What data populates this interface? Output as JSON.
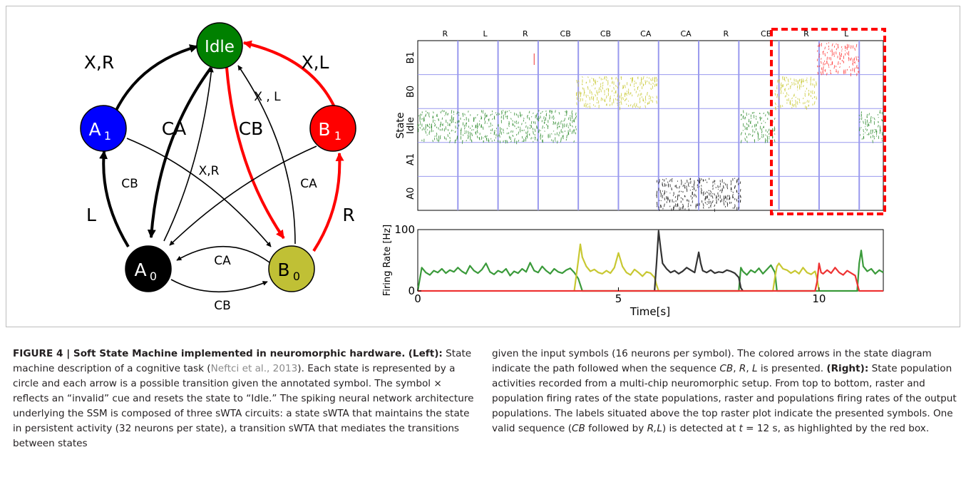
{
  "diagram": {
    "states": {
      "idle": "Idle",
      "a1_base": "A",
      "a1_sub": "1",
      "b1_base": "B",
      "b1_sub": "1",
      "a0_base": "A",
      "a0_sub": "0",
      "b0_base": "B",
      "b0_sub": "0"
    },
    "labels": {
      "xr_top": "X,R",
      "xl_top": "X,L",
      "ca_left": "CA",
      "cb_mid": "CB",
      "xl_inner": "X , L",
      "xr_inner": "X,R",
      "cb_left": "CB",
      "ca_right": "CA",
      "l_left": "L",
      "r_right": "R",
      "ca_bottom": "CA",
      "cb_bottom": "CB"
    },
    "colors": {
      "idle": "#008000",
      "a1": "#0000ff",
      "b1": "#ff0000",
      "a0": "#000000",
      "b0": "#c0c035",
      "path": "#ff0000"
    }
  },
  "chart_data": [
    {
      "type": "raster",
      "ylabel": "State",
      "rows": [
        "B1",
        "B0",
        "Idle",
        "A1",
        "A0"
      ],
      "symbols": [
        {
          "label": "R",
          "t": 1.0
        },
        {
          "label": "L",
          "t": 2.0
        },
        {
          "label": "R",
          "t": 3.0
        },
        {
          "label": "CB",
          "t": 4.0
        },
        {
          "label": "CB",
          "t": 5.0
        },
        {
          "label": "CA",
          "t": 6.0
        },
        {
          "label": "CA",
          "t": 7.0
        },
        {
          "label": "R",
          "t": 8.0
        },
        {
          "label": "CB",
          "t": 9.0
        },
        {
          "label": "R",
          "t": 10.0
        },
        {
          "label": "L",
          "t": 11.0
        }
      ],
      "activity": [
        {
          "state": "Idle",
          "start": 0.0,
          "end": 3.95,
          "color": "#2e8b2e"
        },
        {
          "state": "B0",
          "start": 3.95,
          "end": 5.95,
          "color": "#c8c832"
        },
        {
          "state": "A0",
          "start": 5.95,
          "end": 8.05,
          "color": "#111111"
        },
        {
          "state": "Idle",
          "start": 8.05,
          "end": 8.9,
          "color": "#2e8b2e"
        },
        {
          "state": "B0",
          "start": 8.9,
          "end": 9.95,
          "color": "#c8c832"
        },
        {
          "state": "B1",
          "start": 9.95,
          "end": 11.0,
          "color": "#ff3030"
        },
        {
          "state": "Idle",
          "start": 11.0,
          "end": 11.6,
          "color": "#2e8b2e"
        }
      ],
      "highlight": {
        "start": 8.9,
        "end": 11.6,
        "color": "#ff0000"
      },
      "xlim": [
        0,
        11.6
      ]
    },
    {
      "type": "line",
      "xlabel": "Time[s]",
      "ylabel": "Firing Rate [Hz]",
      "xlim": [
        0,
        11.6
      ],
      "ylim": [
        0,
        100
      ],
      "xticks": [
        0,
        5,
        10
      ],
      "yticks": [
        0,
        100
      ],
      "series": [
        {
          "color": "#3a9a3a",
          "x": [
            0,
            0.1,
            0.2,
            0.3,
            0.4,
            0.5,
            0.6,
            0.7,
            0.8,
            0.9,
            1.0,
            1.1,
            1.2,
            1.3,
            1.4,
            1.5,
            1.6,
            1.7,
            1.8,
            1.9,
            2.0,
            2.1,
            2.2,
            2.3,
            2.4,
            2.5,
            2.6,
            2.7,
            2.8,
            2.9,
            3.0,
            3.1,
            3.2,
            3.3,
            3.4,
            3.5,
            3.6,
            3.7,
            3.8,
            3.9,
            4.0,
            4.1,
            8.0,
            8.05,
            8.1,
            8.2,
            8.3,
            8.4,
            8.5,
            8.6,
            8.7,
            8.8,
            8.9,
            8.95,
            10.95,
            11.0,
            11.05,
            11.1,
            11.2,
            11.3,
            11.4,
            11.5,
            11.6
          ],
          "y": [
            0,
            38,
            30,
            26,
            33,
            30,
            36,
            29,
            34,
            31,
            38,
            32,
            28,
            41,
            33,
            29,
            35,
            45,
            31,
            27,
            33,
            30,
            36,
            25,
            32,
            29,
            36,
            31,
            46,
            33,
            30,
            40,
            33,
            28,
            36,
            31,
            29,
            34,
            37,
            30,
            20,
            0,
            0,
            38,
            32,
            26,
            34,
            30,
            37,
            28,
            35,
            42,
            30,
            0,
            0,
            45,
            66,
            40,
            32,
            36,
            28,
            34,
            30
          ]
        },
        {
          "color": "#c8c832",
          "x": [
            3.9,
            3.95,
            4.0,
            4.05,
            4.1,
            4.2,
            4.3,
            4.4,
            4.5,
            4.6,
            4.7,
            4.8,
            4.9,
            5.0,
            5.1,
            5.2,
            5.3,
            5.4,
            5.5,
            5.6,
            5.7,
            5.8,
            5.9,
            5.95,
            6.0,
            8.85,
            8.9,
            8.95,
            9.0,
            9.1,
            9.2,
            9.3,
            9.4,
            9.5,
            9.6,
            9.7,
            9.8,
            9.9,
            9.95,
            10.0
          ],
          "y": [
            0,
            25,
            50,
            76,
            55,
            40,
            32,
            35,
            30,
            28,
            33,
            29,
            38,
            62,
            40,
            30,
            26,
            35,
            30,
            24,
            31,
            29,
            22,
            10,
            0,
            0,
            22,
            40,
            45,
            36,
            34,
            29,
            33,
            28,
            38,
            30,
            27,
            32,
            20,
            0
          ],
          "opacity": 1.0
        },
        {
          "color": "#333333",
          "x": [
            5.9,
            5.95,
            6.0,
            6.05,
            6.1,
            6.2,
            6.3,
            6.4,
            6.5,
            6.6,
            6.7,
            6.8,
            6.9,
            7.0,
            7.05,
            7.1,
            7.2,
            7.3,
            7.4,
            7.5,
            7.6,
            7.7,
            7.8,
            7.9,
            8.0,
            8.05,
            8.1
          ],
          "y": [
            0,
            45,
            98,
            70,
            45,
            36,
            30,
            33,
            28,
            32,
            38,
            34,
            30,
            63,
            45,
            33,
            30,
            34,
            29,
            31,
            30,
            34,
            32,
            29,
            22,
            5,
            0
          ]
        },
        {
          "color": "#ee3333",
          "x": [
            0,
            9.9,
            9.95,
            10.0,
            10.05,
            10.1,
            10.2,
            10.3,
            10.4,
            10.5,
            10.6,
            10.7,
            10.8,
            10.9,
            10.95,
            11.0,
            11.05,
            11.6
          ],
          "y": [
            0,
            0,
            15,
            45,
            30,
            28,
            34,
            29,
            38,
            30,
            26,
            33,
            29,
            25,
            12,
            0,
            0,
            0
          ]
        }
      ]
    }
  ],
  "caption": {
    "left": {
      "figure_label": "FIGURE 4 | Soft State Machine implemented in neuromorphic hardware.",
      "left_tag": "(Left):",
      "left_text_1": " State machine description of a cognitive task (",
      "citation": "Neftci et al., 2013",
      "left_text_2": "). Each state is represented by a circle and each arrow is a possible transition given the annotated symbol. The symbol × reflects an “invalid” cue and resets the state to “Idle.” The spiking neural network architecture underlying the SSM is composed of three sWTA circuits: a state sWTA that maintains the state in persistent activity (32 neurons per state), a transition sWTA that mediates the transitions between states"
    },
    "right": {
      "text_1": "given the input symbols (16 neurons per symbol). The colored arrows in the state diagram indicate the path followed when the sequence ",
      "seq_cb": "CB",
      "comma1": ", ",
      "seq_r": "R",
      "comma2": ", ",
      "seq_l": "L",
      "text_2": " is presented. ",
      "right_tag": "(Right):",
      "text_3": " State population activities recorded from a multi-chip neuromorphic setup. From top to bottom, raster and population firing rates of the state populations, raster and populations firing rates of the output populations. The labels situated above the top raster plot indicate the presented symbols. One valid sequence (",
      "valid_cb": "CB",
      "text_4": " followed by ",
      "valid_rl": "R,L",
      "text_5": ") is detected at ",
      "t_var": "t",
      "text_6": " = 12 s, as highlighted by the red box."
    }
  }
}
